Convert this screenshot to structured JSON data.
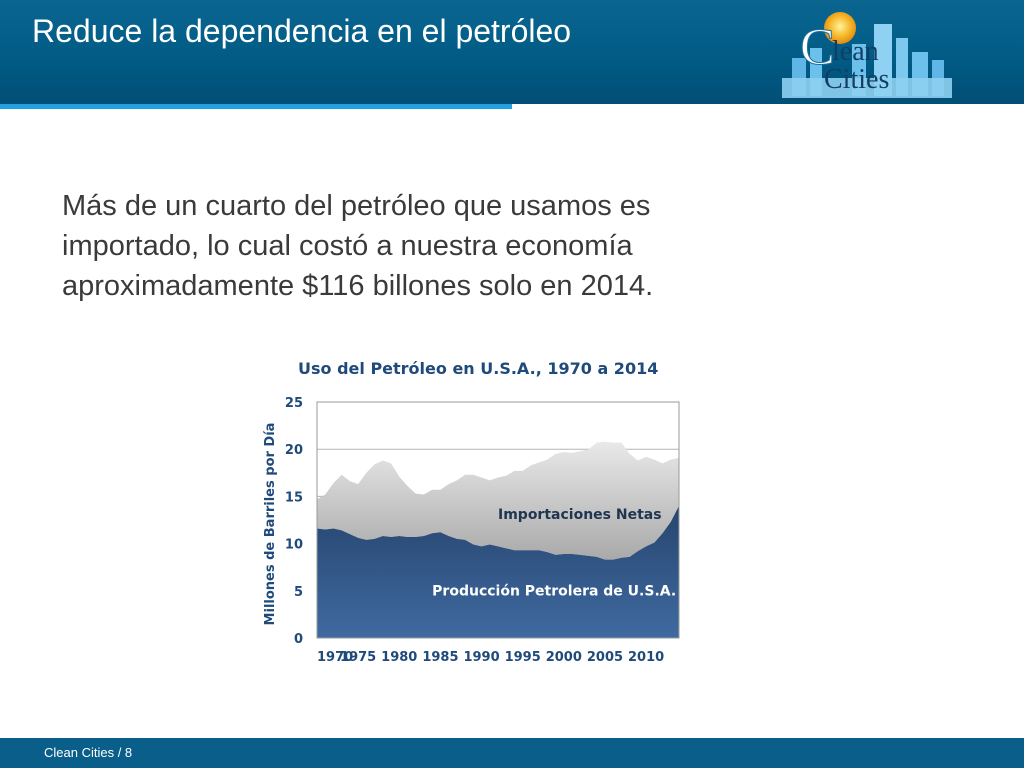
{
  "slide": {
    "title": "Reduce la dependencia en el petróleo",
    "body": "Más de un cuarto del petróleo que usamos es importado, lo cual costó a nuestra economía aproximadamente $116 billones solo en 2014.",
    "footer": "Clean Cities  /  8"
  },
  "logo": {
    "text_line1": "lean",
    "text_line2": "Cities",
    "initial": "C"
  },
  "colors": {
    "header": "#005a84",
    "accent": "#21a0e3",
    "production": "#2e4a74",
    "imports": "#c9c9c9"
  },
  "chart_data": {
    "type": "area",
    "title": "Uso del Petróleo en U.S.A., 1970 a 2014",
    "xlabel": "",
    "ylabel": "Millones de Barriles por Día",
    "ylim": [
      0,
      25
    ],
    "yticks": [
      0,
      5,
      10,
      15,
      20,
      25
    ],
    "xticks": [
      1970,
      1975,
      1980,
      1985,
      1990,
      1995,
      2000,
      2005,
      2010
    ],
    "grid": true,
    "x": [
      1970,
      1971,
      1972,
      1973,
      1974,
      1975,
      1976,
      1977,
      1978,
      1979,
      1980,
      1981,
      1982,
      1983,
      1984,
      1985,
      1986,
      1987,
      1988,
      1989,
      1990,
      1991,
      1992,
      1993,
      1994,
      1995,
      1996,
      1997,
      1998,
      1999,
      2000,
      2001,
      2002,
      2003,
      2004,
      2005,
      2006,
      2007,
      2008,
      2009,
      2010,
      2011,
      2012,
      2013,
      2014
    ],
    "series": [
      {
        "name": "Producción Petrolera de U.S.A.",
        "label_position": [
          1984,
          4.5
        ],
        "values": [
          11.6,
          11.5,
          11.6,
          11.4,
          11.0,
          10.6,
          10.4,
          10.5,
          10.8,
          10.7,
          10.8,
          10.7,
          10.7,
          10.8,
          11.1,
          11.2,
          10.8,
          10.5,
          10.4,
          9.9,
          9.7,
          9.9,
          9.7,
          9.5,
          9.3,
          9.3,
          9.3,
          9.3,
          9.1,
          8.8,
          8.9,
          8.9,
          8.8,
          8.7,
          8.6,
          8.3,
          8.3,
          8.5,
          8.6,
          9.2,
          9.7,
          10.1,
          11.1,
          12.3,
          14.0
        ]
      },
      {
        "name": "Importaciones Netas",
        "label_position": [
          1992,
          12.6
        ],
        "total_values": [
          14.7,
          15.2,
          16.4,
          17.3,
          16.6,
          16.3,
          17.5,
          18.4,
          18.8,
          18.5,
          17.1,
          16.1,
          15.3,
          15.2,
          15.7,
          15.7,
          16.3,
          16.7,
          17.3,
          17.3,
          17.0,
          16.7,
          17.0,
          17.2,
          17.7,
          17.7,
          18.3,
          18.6,
          18.9,
          19.5,
          19.7,
          19.6,
          19.8,
          20.0,
          20.7,
          20.8,
          20.7,
          20.7,
          19.5,
          18.8,
          19.2,
          18.9,
          18.5,
          18.9,
          19.1
        ]
      }
    ]
  }
}
